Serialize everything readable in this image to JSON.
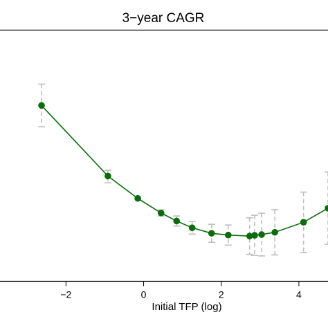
{
  "chart_data": {
    "type": "line",
    "title": "3−year CAGR",
    "xlabel": "Initial TFP (log)",
    "ylabel": "",
    "xlim": [
      -3.7,
      4.75
    ],
    "x_ticks": [
      -2,
      0,
      2,
      4
    ],
    "x_tick_labels": [
      "−2",
      "0",
      "2",
      "4"
    ],
    "ylim": [
      0,
      10
    ],
    "grid": false,
    "series": [
      {
        "name": "",
        "color": "#0b6b0b",
        "error_color": "#bdbdbd",
        "points": [
          {
            "x": -2.63,
            "y": 7.0,
            "err_lo": 0.85,
            "err_hi": 0.85
          },
          {
            "x": -0.92,
            "y": 4.19,
            "err_lo": 0.27,
            "err_hi": 0.23
          },
          {
            "x": -0.15,
            "y": 3.3,
            "err_lo": 0.0,
            "err_hi": 0.0
          },
          {
            "x": 0.45,
            "y": 2.72,
            "err_lo": 0.12,
            "err_hi": 0.12
          },
          {
            "x": 0.85,
            "y": 2.4,
            "err_lo": 0.2,
            "err_hi": 0.2
          },
          {
            "x": 1.25,
            "y": 2.13,
            "err_lo": 0.25,
            "err_hi": 0.25
          },
          {
            "x": 1.75,
            "y": 1.91,
            "err_lo": 0.36,
            "err_hi": 0.36
          },
          {
            "x": 2.18,
            "y": 1.84,
            "err_lo": 0.4,
            "err_hi": 0.4
          },
          {
            "x": 2.73,
            "y": 1.8,
            "err_lo": 0.73,
            "err_hi": 0.73
          },
          {
            "x": 2.86,
            "y": 1.83,
            "err_lo": 0.8,
            "err_hi": 0.8
          },
          {
            "x": 3.04,
            "y": 1.86,
            "err_lo": 0.85,
            "err_hi": 0.85
          },
          {
            "x": 3.38,
            "y": 1.95,
            "err_lo": 0.9,
            "err_hi": 0.9
          },
          {
            "x": 4.12,
            "y": 2.35,
            "err_lo": 1.2,
            "err_hi": 1.2
          },
          {
            "x": 4.75,
            "y": 2.91,
            "err_lo": 1.44,
            "err_hi": 1.44
          }
        ]
      }
    ]
  }
}
